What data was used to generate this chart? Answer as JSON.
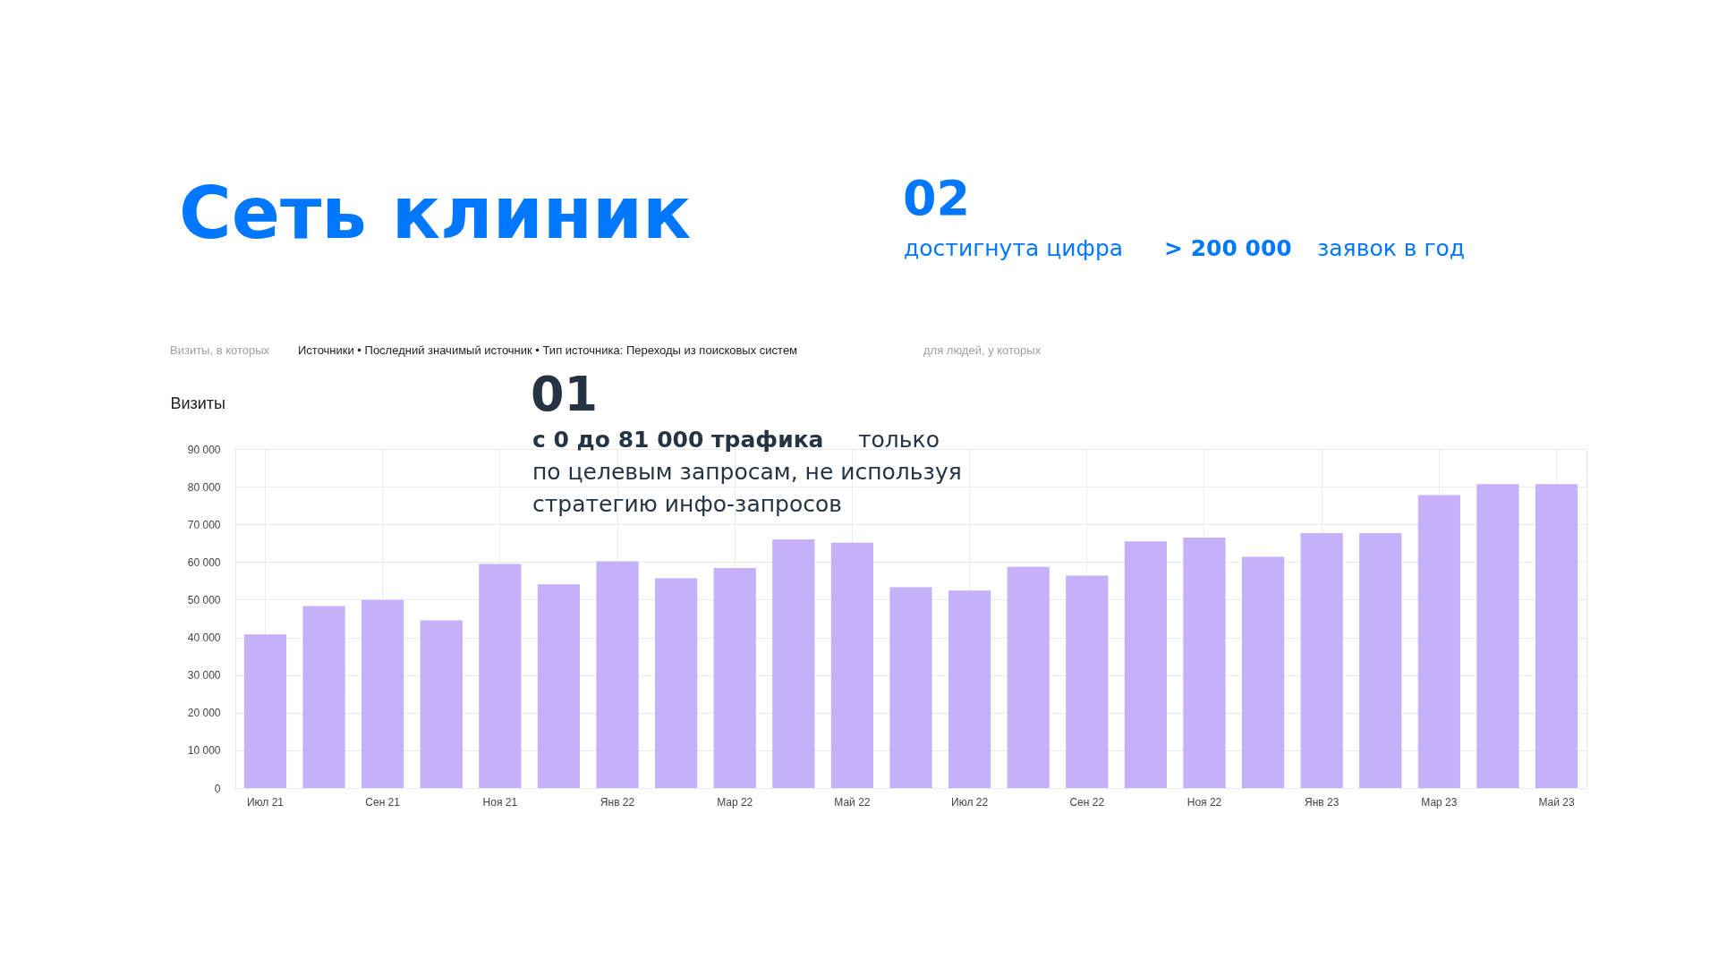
{
  "chart_data": {
    "type": "bar",
    "title": "Сеть клиник",
    "ylabel": "Визиты",
    "categories": [
      "Июл 21",
      null,
      "Сен 21",
      null,
      "Ноя 21",
      null,
      "Янв 22",
      null,
      "Мар 22",
      null,
      "Май 22",
      null,
      "Июл 22",
      null,
      "Сен 22",
      null,
      "Ноя 22",
      null,
      "Янв 23",
      null,
      "Мар 23",
      null,
      "Май 23"
    ],
    "values": [
      40800,
      48300,
      49900,
      44500,
      59500,
      54100,
      60200,
      55700,
      58400,
      66000,
      65100,
      53300,
      52400,
      58700,
      56400,
      65500,
      66500,
      61400,
      67700,
      67700,
      77800,
      80700,
      80700
    ],
    "color": "#c4b1fa",
    "ylim": [
      0,
      90000
    ],
    "yticks": [
      {
        "value": 0,
        "label": "0"
      },
      {
        "value": 10000,
        "label": "10 000"
      },
      {
        "value": 20000,
        "label": "20 000"
      },
      {
        "value": 30000,
        "label": "30 000"
      },
      {
        "value": 40000,
        "label": "40 000"
      },
      {
        "value": 50000,
        "label": "50 000"
      },
      {
        "value": 60000,
        "label": "60 000"
      },
      {
        "value": 70000,
        "label": "70 000"
      },
      {
        "value": 80000,
        "label": "80 000"
      },
      {
        "value": 90000,
        "label": "90 000"
      }
    ],
    "grid": true,
    "annotations": [
      "Визиты, в которых",
      "Источники • Последний значимый источник • Тип источника: Переходы из поисковых систем",
      "для людей, у которых",
      "01",
      "с 0 до 81 000 трафика",
      "только",
      "по целевым запросам, не используя",
      "стратегию инфо-запросов",
      "02",
      "достигнута цифра",
      "> 200 000",
      "заявок в год"
    ]
  }
}
